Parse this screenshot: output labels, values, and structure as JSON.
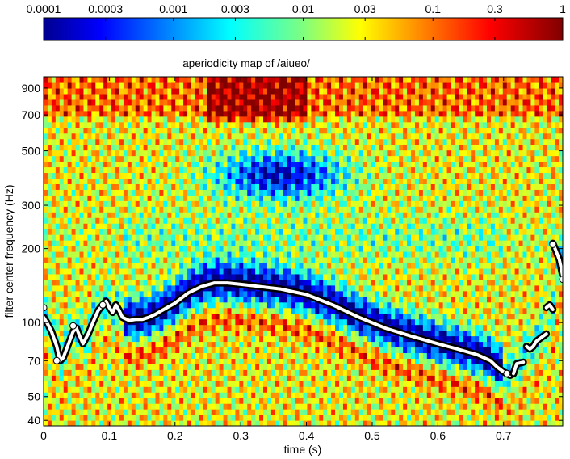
{
  "chart_data": {
    "type": "heatmap",
    "title": "aperiodicity map of /aiueo/",
    "xlabel": "time (s)",
    "ylabel": "filter center frequency (Hz)",
    "xlim": [
      0,
      0.79
    ],
    "ylim": [
      38,
      1000
    ],
    "y_scale": "log",
    "x_ticks": [
      0,
      0.1,
      0.2,
      0.3,
      0.4,
      0.5,
      0.6,
      0.7
    ],
    "x_tick_labels": [
      "0",
      "0.1",
      "0.2",
      "0.3",
      "0.4",
      "0.5",
      "0.6",
      "0.7"
    ],
    "y_ticks": [
      40,
      50,
      70,
      100,
      200,
      300,
      500,
      700,
      900
    ],
    "y_tick_labels": [
      "40",
      "50",
      "70",
      "100",
      "200",
      "300",
      "500",
      "700",
      "900"
    ],
    "colorbar": {
      "scale": "log",
      "range": [
        0.0001,
        1
      ],
      "ticks": [
        0.0001,
        0.0003,
        0.001,
        0.003,
        0.01,
        0.03,
        0.1,
        0.3,
        1
      ],
      "tick_labels": [
        "0.0001",
        "0.0003",
        "0.001",
        "0.003",
        "0.01",
        "0.03",
        "0.1",
        "0.3",
        "1"
      ],
      "colormap": "jet"
    },
    "f0_track": {
      "segments": [
        {
          "t": [
            0.0,
            0.005,
            0.012,
            0.02,
            0.025,
            0.03,
            0.038,
            0.045,
            0.05,
            0.055,
            0.06,
            0.068,
            0.075,
            0.083,
            0.09,
            0.095
          ],
          "f": [
            105,
            100,
            92,
            80,
            70,
            72,
            82,
            92,
            95,
            88,
            82,
            90,
            100,
            112,
            118,
            122
          ]
        },
        {
          "t": [
            0.095,
            0.1,
            0.105,
            0.11,
            0.115,
            0.12,
            0.13,
            0.14,
            0.15,
            0.16,
            0.17,
            0.18,
            0.2,
            0.22,
            0.24,
            0.26,
            0.28,
            0.3,
            0.33,
            0.36,
            0.4,
            0.44,
            0.48,
            0.52,
            0.56,
            0.6,
            0.63,
            0.66,
            0.68,
            0.69,
            0.7,
            0.71,
            0.715
          ],
          "f": [
            122,
            115,
            110,
            118,
            112,
            105,
            102,
            103,
            103,
            105,
            108,
            112,
            120,
            132,
            140,
            145,
            145,
            143,
            140,
            137,
            130,
            118,
            105,
            95,
            88,
            82,
            78,
            74,
            70,
            66,
            63,
            61,
            62
          ]
        },
        {
          "t": [
            0.715,
            0.72,
            0.73
          ],
          "f": [
            62,
            68,
            69
          ]
        },
        {
          "t": [
            0.735,
            0.74,
            0.745,
            0.75,
            0.755,
            0.76,
            0.765
          ],
          "f": [
            80,
            78,
            80,
            84,
            86,
            88,
            90
          ]
        },
        {
          "t": [
            0.765,
            0.77,
            0.775
          ],
          "f": [
            115,
            118,
            113
          ]
        },
        {
          "t": [
            0.775,
            0.78,
            0.785,
            0.79
          ],
          "f": [
            210,
            195,
            180,
            155
          ]
        }
      ],
      "open_points": [
        {
          "t": 0.0,
          "f": 115
        },
        {
          "t": 0.02,
          "f": 70
        },
        {
          "t": 0.045,
          "f": 97
        },
        {
          "t": 0.09,
          "f": 118
        },
        {
          "t": 0.705,
          "f": 62
        },
        {
          "t": 0.775,
          "f": 208
        },
        {
          "t": 0.79,
          "f": 150
        }
      ]
    }
  }
}
